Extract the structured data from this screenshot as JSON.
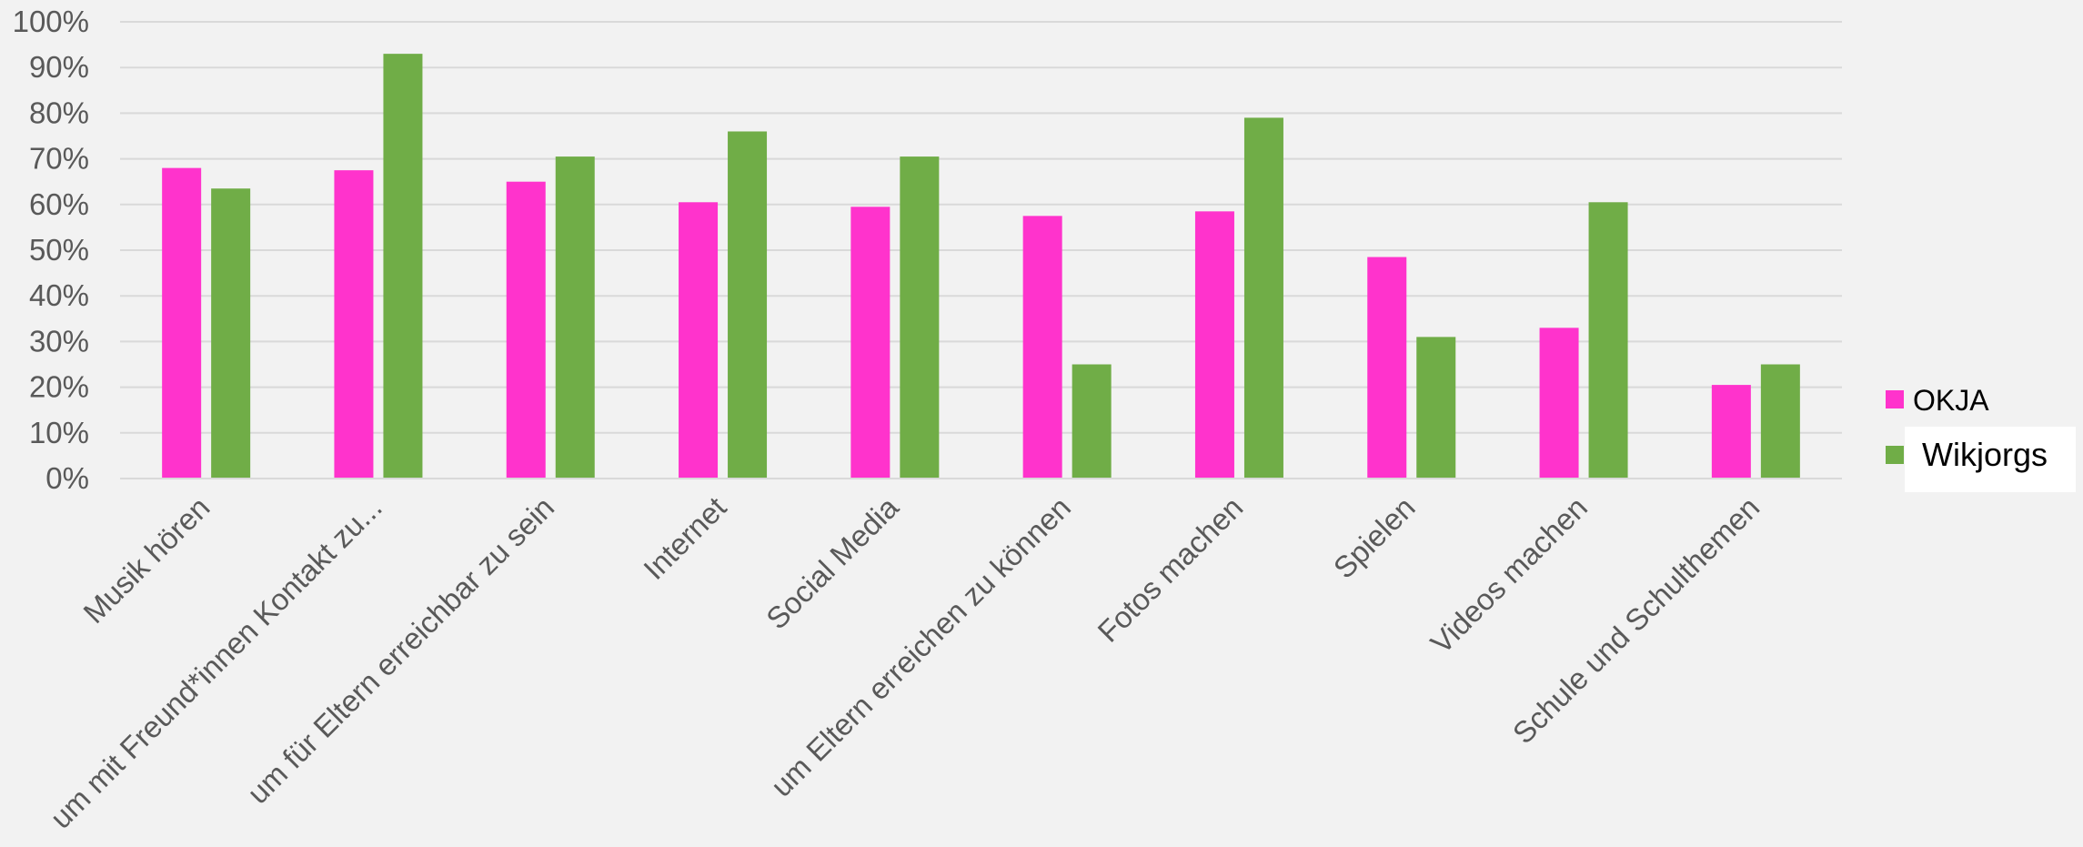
{
  "chart_data": {
    "type": "bar",
    "categories": [
      "Musik hören",
      "um mit Freund*innen Kontakt zu...",
      "um für Eltern erreichbar zu sein",
      "Internet",
      "Social Media",
      "um Eltern erreichen zu können",
      "Fotos machen",
      "Spielen",
      "Videos machen",
      "Schule und Schulthemen"
    ],
    "series": [
      {
        "name": "OKJA",
        "color": "#ff33cc",
        "values": [
          68,
          67.5,
          65,
          60.5,
          59.5,
          57.5,
          58.5,
          48.5,
          33,
          20.5
        ]
      },
      {
        "name": "Wikjorgs",
        "color": "#70ad47",
        "values": [
          63.5,
          93,
          70.5,
          76,
          70.5,
          25,
          79,
          31,
          60.5,
          25
        ]
      }
    ],
    "ylim": [
      0,
      100
    ],
    "yticks": [
      "0%",
      "10%",
      "20%",
      "30%",
      "40%",
      "50%",
      "60%",
      "70%",
      "80%",
      "90%",
      "100%"
    ],
    "title": "",
    "xlabel": "",
    "ylabel": "",
    "grid": true,
    "legend_position": "right"
  }
}
